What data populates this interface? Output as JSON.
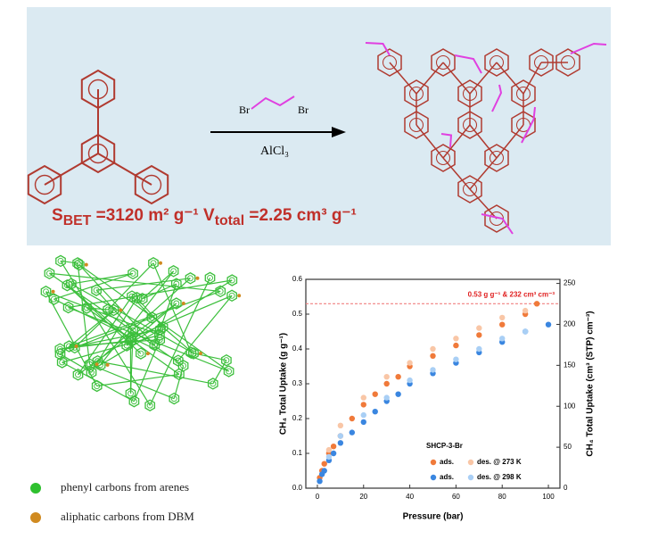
{
  "scheme": {
    "reagent_left": "Br",
    "reagent_right": "Br",
    "catalyst": "AlCl₃",
    "properties": "S<sub>BET</sub> =3120 m² g⁻¹  V<sub>total</sub> =2.25 cm³ g⁻¹"
  },
  "atom_legend": [
    "phenyl carbons from arenes",
    "aliphatic carbons from DBM"
  ],
  "chart_data": {
    "type": "scatter",
    "xlabel": "Pressure (bar)",
    "ylabel": "CH₄ Total Uptake (g g⁻¹)",
    "y2label": "CH₄ Total Uptake (cm³ (STP) cm⁻³)",
    "legend_title": "SHCP-3-Br",
    "annotation": "0.53 g g⁻¹ & 232 cm³ cm⁻³",
    "hline": 0.53,
    "xlim": [
      -5,
      105
    ],
    "xticks": [
      0,
      20,
      40,
      60,
      80,
      100
    ],
    "ylim": [
      0,
      0.6
    ],
    "yticks": [
      {
        "value": 0,
        "label": "0.0"
      },
      0.1,
      0.2,
      0.3,
      0.4,
      0.5,
      0.6
    ],
    "y2lim": [
      0,
      255
    ],
    "y2ticks": [
      0,
      50,
      100,
      150,
      200,
      250
    ],
    "series": [
      {
        "name": "ads.",
        "color": "#f07a3a",
        "x": [
          1,
          2,
          3,
          5,
          7,
          10,
          15,
          20,
          25,
          30,
          35,
          40,
          50,
          60,
          70,
          80,
          90,
          95
        ],
        "values": [
          0.03,
          0.05,
          0.07,
          0.1,
          0.12,
          0.15,
          0.2,
          0.24,
          0.27,
          0.3,
          0.32,
          0.35,
          0.38,
          0.41,
          0.44,
          0.47,
          0.5,
          0.53
        ]
      },
      {
        "name": "des. @ 273 K",
        "color": "#f9c6a6",
        "x": [
          90,
          80,
          70,
          60,
          50,
          40,
          30,
          20,
          10,
          5
        ],
        "values": [
          0.51,
          0.49,
          0.46,
          0.43,
          0.4,
          0.36,
          0.32,
          0.26,
          0.18,
          0.11
        ]
      },
      {
        "name": "ads.",
        "color": "#3a86e0",
        "x": [
          1,
          2,
          3,
          5,
          7,
          10,
          15,
          20,
          25,
          30,
          35,
          40,
          50,
          60,
          70,
          80,
          90,
          100
        ],
        "values": [
          0.02,
          0.04,
          0.05,
          0.08,
          0.1,
          0.13,
          0.16,
          0.19,
          0.22,
          0.25,
          0.27,
          0.3,
          0.33,
          0.36,
          0.39,
          0.42,
          0.45,
          0.47
        ]
      },
      {
        "name": "des. @ 298 K",
        "color": "#a9cff5",
        "x": [
          90,
          80,
          70,
          60,
          50,
          40,
          30,
          20,
          10,
          5
        ],
        "values": [
          0.45,
          0.43,
          0.4,
          0.37,
          0.34,
          0.31,
          0.26,
          0.21,
          0.15,
          0.09
        ]
      }
    ]
  }
}
